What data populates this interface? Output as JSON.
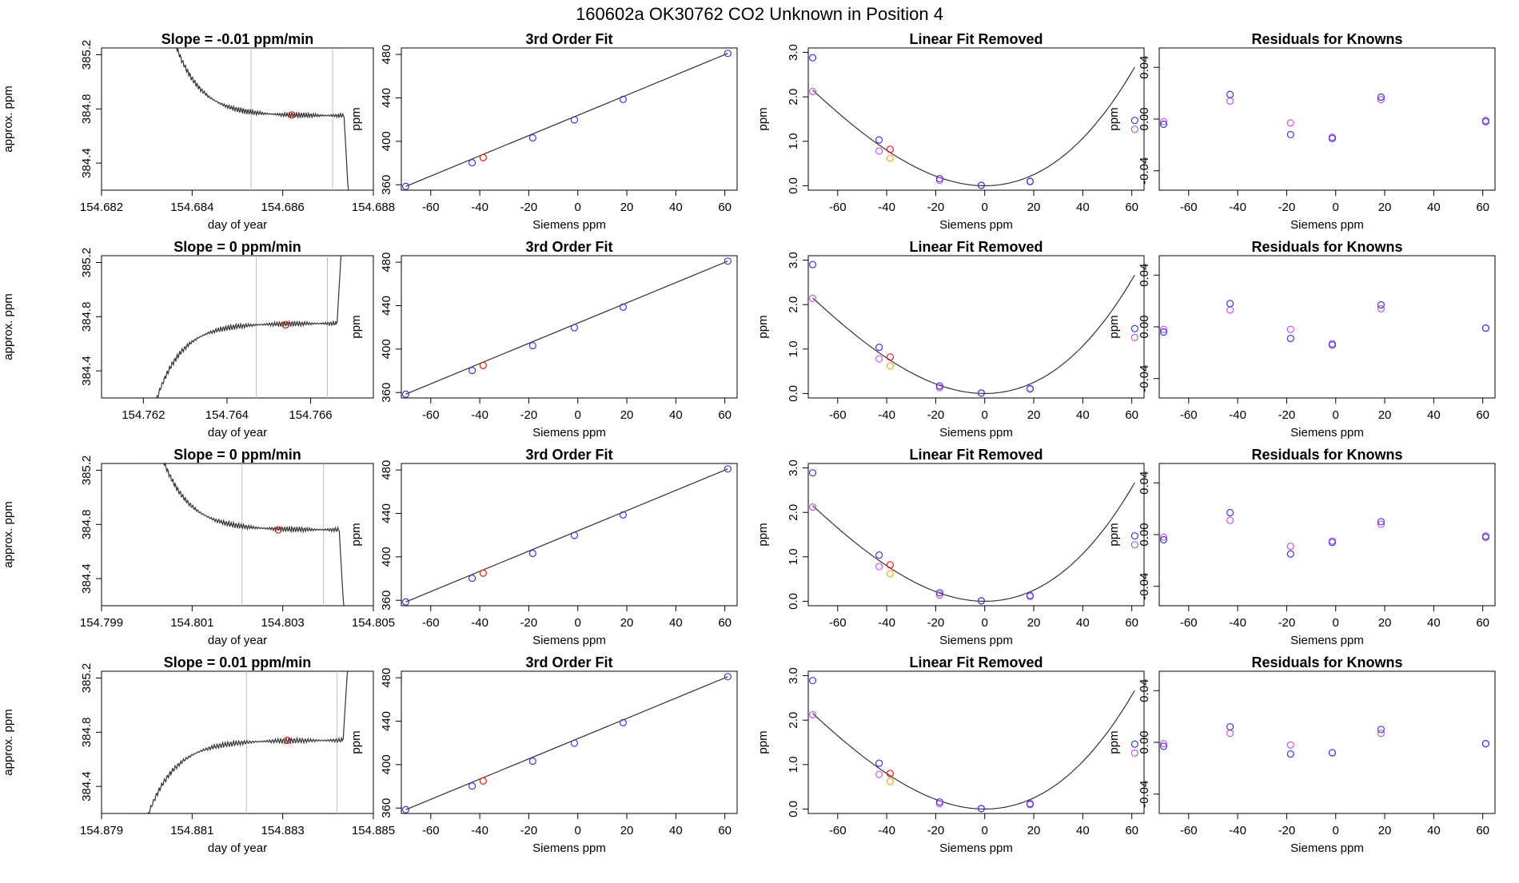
{
  "page_title": "160602a     OK30762   CO2 Unknown in Position  4",
  "chart_data": {
    "type": "scatter",
    "title": "160602a     OK30762   CO2 Unknown in Position  4",
    "layout": "4 rows x 4 columns",
    "rows": [
      {
        "time_series": {
          "title": "Slope =  -0.01  ppm/min",
          "xlabel": "day of year",
          "ylabel": "approx. ppm",
          "xlim": [
            154.682,
            154.688
          ],
          "ylim": [
            384.2,
            385.25
          ],
          "xticks": [
            "154.682",
            "154.684",
            "154.686",
            "154.688"
          ],
          "yticks": [
            "384.4",
            "384.8",
            "385.2"
          ],
          "shape": "decay",
          "start_x": 154.6833,
          "end_x": 154.6875,
          "plateau": 384.75,
          "vlines": [
            154.6853,
            154.6871
          ],
          "marker": {
            "x": 154.6862,
            "y": 384.755,
            "color": "#e41a1c"
          }
        },
        "cubic_fit": {
          "title": "3rd Order Fit",
          "xlabel": "Siemens ppm",
          "ylabel": "ppm",
          "xticks": [
            "-60",
            "-40",
            "-20",
            "0",
            "20",
            "40",
            "60"
          ],
          "yticks": [
            "360",
            "400",
            "440",
            "480"
          ],
          "knowns": [
            [
              -70.2,
              358.5
            ],
            [
              -43.1,
              380.3
            ],
            [
              -18.4,
              403.2
            ],
            [
              -1.4,
              419.8
            ],
            [
              18.5,
              438.6
            ],
            [
              61.2,
              481.0
            ]
          ],
          "unknown": [
            -38.6,
            385.0
          ]
        },
        "linear_removed": {
          "title": "Linear Fit Removed",
          "xlabel": "Siemens ppm",
          "ylabel": "ppm",
          "xticks": [
            "-60",
            "-40",
            "-20",
            "0",
            "20",
            "40",
            "60"
          ],
          "yticks": [
            "0.0",
            "1.0",
            "2.0",
            "3.0"
          ],
          "knowns_blue": [
            [
              -70.2,
              2.88
            ],
            [
              -43.1,
              1.03
            ],
            [
              -18.4,
              0.16
            ],
            [
              -1.4,
              0.01
            ],
            [
              18.5,
              0.1
            ],
            [
              61.2,
              1.47
            ]
          ],
          "knowns_magenta": [
            [
              -70.2,
              2.12
            ],
            [
              -43.1,
              0.78
            ],
            [
              -18.4,
              0.12
            ],
            [
              -1.4,
              0.01
            ],
            [
              18.5,
              0.09
            ],
            [
              61.2,
              1.27
            ]
          ],
          "unknown_red": [
            -38.6,
            0.82
          ],
          "unknown_orange": [
            -38.6,
            0.62
          ]
        },
        "residuals": {
          "title": "Residuals for Knowns",
          "xlabel": "Siemens ppm",
          "ylabel": "ppm",
          "xticks": [
            "-60",
            "-40",
            "-20",
            "0",
            "20",
            "40",
            "60"
          ],
          "yticks": [
            "-0.04",
            "0.00",
            "0.04"
          ],
          "blue": [
            [
              -70.2,
              -0.004
            ],
            [
              -43.1,
              0.019
            ],
            [
              -18.4,
              -0.012
            ],
            [
              -1.4,
              -0.015
            ],
            [
              18.5,
              0.017
            ],
            [
              61.2,
              -0.002
            ]
          ],
          "magenta": [
            [
              -70.2,
              -0.002
            ],
            [
              -43.1,
              0.014
            ],
            [
              -18.4,
              -0.003
            ],
            [
              -1.4,
              -0.014
            ],
            [
              18.5,
              0.015
            ],
            [
              61.2,
              -0.001
            ]
          ]
        }
      },
      {
        "time_series": {
          "title": "Slope =  0  ppm/min",
          "xlabel": "day of year",
          "ylabel": "approx. ppm",
          "xlim": [
            154.761,
            154.7675
          ],
          "ylim": [
            384.2,
            385.25
          ],
          "xticks": [
            "154.762",
            "154.764",
            "154.766"
          ],
          "yticks": [
            "384.4",
            "384.8",
            "385.2"
          ],
          "shape": "rise",
          "start_x": 154.762,
          "end_x": 154.7668,
          "plateau": 384.75,
          "vlines": [
            154.7647,
            154.7664
          ],
          "marker": {
            "x": 154.7654,
            "y": 384.74,
            "color": "#e41a1c"
          }
        },
        "cubic_fit": {
          "title": "3rd Order Fit",
          "xlabel": "Siemens ppm",
          "ylabel": "ppm",
          "xticks": [
            "-60",
            "-40",
            "-20",
            "0",
            "20",
            "40",
            "60"
          ],
          "yticks": [
            "360",
            "400",
            "440",
            "480"
          ],
          "knowns": [
            [
              -70.2,
              358.5
            ],
            [
              -43.1,
              380.3
            ],
            [
              -18.4,
              403.2
            ],
            [
              -1.4,
              419.8
            ],
            [
              18.5,
              438.6
            ],
            [
              61.2,
              481.0
            ]
          ],
          "unknown": [
            -38.6,
            385.0
          ]
        },
        "linear_removed": {
          "title": "Linear Fit Removed",
          "xlabel": "Siemens ppm",
          "ylabel": "ppm",
          "xticks": [
            "-60",
            "-40",
            "-20",
            "0",
            "20",
            "40",
            "60"
          ],
          "yticks": [
            "0.0",
            "1.0",
            "2.0",
            "3.0"
          ],
          "knowns_blue": [
            [
              -70.2,
              2.9
            ],
            [
              -43.1,
              1.04
            ],
            [
              -18.4,
              0.17
            ],
            [
              -1.4,
              0.01
            ],
            [
              18.5,
              0.11
            ],
            [
              61.2,
              1.46
            ]
          ],
          "knowns_magenta": [
            [
              -70.2,
              2.14
            ],
            [
              -43.1,
              0.78
            ],
            [
              -18.4,
              0.13
            ],
            [
              -1.4,
              0.01
            ],
            [
              18.5,
              0.1
            ],
            [
              61.2,
              1.26
            ]
          ],
          "unknown_red": [
            -38.6,
            0.82
          ],
          "unknown_orange": [
            -38.6,
            0.62
          ]
        },
        "residuals": {
          "title": "Residuals for Knowns",
          "xlabel": "Siemens ppm",
          "ylabel": "ppm",
          "xticks": [
            "-60",
            "-40",
            "-20",
            "0",
            "20",
            "40",
            "60"
          ],
          "yticks": [
            "-0.04",
            "0.00",
            "0.04"
          ],
          "blue": [
            [
              -70.2,
              -0.004
            ],
            [
              -43.1,
              0.018
            ],
            [
              -18.4,
              -0.009
            ],
            [
              -1.4,
              -0.014
            ],
            [
              18.5,
              0.017
            ],
            [
              61.2,
              -0.001
            ]
          ],
          "magenta": [
            [
              -70.2,
              -0.002
            ],
            [
              -43.1,
              0.013
            ],
            [
              -18.4,
              -0.002
            ],
            [
              -1.4,
              -0.013
            ],
            [
              18.5,
              0.014
            ],
            [
              61.2,
              -0.001
            ]
          ]
        }
      },
      {
        "time_series": {
          "title": "Slope =  0  ppm/min",
          "xlabel": "day of year",
          "ylabel": "approx. ppm",
          "xlim": [
            154.799,
            154.805
          ],
          "ylim": [
            384.2,
            385.25
          ],
          "xticks": [
            "154.799",
            "154.801",
            "154.803",
            "154.805"
          ],
          "yticks": [
            "384.4",
            "384.8",
            "385.2"
          ],
          "shape": "decay",
          "start_x": 154.8,
          "end_x": 154.8044,
          "plateau": 384.76,
          "vlines": [
            154.8021,
            154.8039
          ],
          "marker": {
            "x": 154.8029,
            "y": 384.76,
            "color": "#e41a1c"
          }
        },
        "cubic_fit": {
          "title": "3rd Order Fit",
          "xlabel": "Siemens ppm",
          "ylabel": "ppm",
          "xticks": [
            "-60",
            "-40",
            "-20",
            "0",
            "20",
            "40",
            "60"
          ],
          "yticks": [
            "360",
            "400",
            "440",
            "480"
          ],
          "knowns": [
            [
              -70.2,
              358.5
            ],
            [
              -43.1,
              380.3
            ],
            [
              -18.4,
              403.2
            ],
            [
              -1.4,
              419.8
            ],
            [
              18.5,
              438.6
            ],
            [
              61.2,
              481.0
            ]
          ],
          "unknown": [
            -38.6,
            385.0
          ]
        },
        "linear_removed": {
          "title": "Linear Fit Removed",
          "xlabel": "Siemens ppm",
          "ylabel": "ppm",
          "xticks": [
            "-60",
            "-40",
            "-20",
            "0",
            "20",
            "40",
            "60"
          ],
          "yticks": [
            "0.0",
            "1.0",
            "2.0",
            "3.0"
          ],
          "knowns_blue": [
            [
              -70.2,
              2.89
            ],
            [
              -43.1,
              1.04
            ],
            [
              -18.4,
              0.19
            ],
            [
              -1.4,
              0.01
            ],
            [
              18.5,
              0.13
            ],
            [
              61.2,
              1.47
            ]
          ],
          "knowns_magenta": [
            [
              -70.2,
              2.12
            ],
            [
              -43.1,
              0.78
            ],
            [
              -18.4,
              0.14
            ],
            [
              -1.4,
              0.01
            ],
            [
              18.5,
              0.11
            ],
            [
              61.2,
              1.27
            ]
          ],
          "unknown_red": [
            -38.6,
            0.82
          ],
          "unknown_orange": [
            -38.6,
            0.62
          ]
        },
        "residuals": {
          "title": "Residuals for Knowns",
          "xlabel": "Siemens ppm",
          "ylabel": "ppm",
          "xticks": [
            "-60",
            "-40",
            "-20",
            "0",
            "20",
            "40",
            "60"
          ],
          "yticks": [
            "-0.04",
            "0.00",
            "0.04"
          ],
          "blue": [
            [
              -70.2,
              -0.004
            ],
            [
              -43.1,
              0.017
            ],
            [
              -18.4,
              -0.015
            ],
            [
              -1.4,
              -0.006
            ],
            [
              18.5,
              0.01
            ],
            [
              61.2,
              -0.002
            ]
          ],
          "magenta": [
            [
              -70.2,
              -0.002
            ],
            [
              -43.1,
              0.011
            ],
            [
              -18.4,
              -0.009
            ],
            [
              -1.4,
              -0.005
            ],
            [
              18.5,
              0.008
            ],
            [
              61.2,
              -0.001
            ]
          ]
        }
      },
      {
        "time_series": {
          "title": "Slope =  0.01  ppm/min",
          "xlabel": "day of year",
          "ylabel": "approx. ppm",
          "xlim": [
            154.879,
            154.885
          ],
          "ylim": [
            384.2,
            385.25
          ],
          "xticks": [
            "154.879",
            "154.881",
            "154.883",
            "154.885"
          ],
          "yticks": [
            "384.4",
            "384.8",
            "385.2"
          ],
          "shape": "rise",
          "start_x": 154.8797,
          "end_x": 154.8845,
          "plateau": 384.74,
          "vlines": [
            154.8822,
            154.8842
          ],
          "marker": {
            "x": 154.8831,
            "y": 384.74,
            "color": "#e41a1c"
          }
        },
        "cubic_fit": {
          "title": "3rd Order Fit",
          "xlabel": "Siemens ppm",
          "ylabel": "ppm",
          "xticks": [
            "-60",
            "-40",
            "-20",
            "0",
            "20",
            "40",
            "60"
          ],
          "yticks": [
            "360",
            "400",
            "440",
            "480"
          ],
          "knowns": [
            [
              -70.2,
              358.5
            ],
            [
              -43.1,
              380.3
            ],
            [
              -18.4,
              403.2
            ],
            [
              -1.4,
              419.8
            ],
            [
              18.5,
              438.6
            ],
            [
              61.2,
              481.0
            ]
          ],
          "unknown": [
            -38.6,
            385.0
          ]
        },
        "linear_removed": {
          "title": "Linear Fit Removed",
          "xlabel": "Siemens ppm",
          "ylabel": "ppm",
          "xticks": [
            "-60",
            "-40",
            "-20",
            "0",
            "20",
            "40",
            "60"
          ],
          "yticks": [
            "0.0",
            "1.0",
            "2.0",
            "3.0"
          ],
          "knowns_blue": [
            [
              -70.2,
              2.89
            ],
            [
              -43.1,
              1.03
            ],
            [
              -18.4,
              0.16
            ],
            [
              -1.4,
              0.01
            ],
            [
              18.5,
              0.12
            ],
            [
              61.2,
              1.46
            ]
          ],
          "knowns_magenta": [
            [
              -70.2,
              2.12
            ],
            [
              -43.1,
              0.78
            ],
            [
              -18.4,
              0.12
            ],
            [
              -1.4,
              0.01
            ],
            [
              18.5,
              0.1
            ],
            [
              61.2,
              1.26
            ]
          ],
          "unknown_red": [
            -38.6,
            0.8
          ],
          "unknown_orange": [
            -38.6,
            0.62
          ]
        },
        "residuals": {
          "title": "Residuals for Knowns",
          "xlabel": "Siemens ppm",
          "ylabel": "ppm",
          "xticks": [
            "-60",
            "-40",
            "-20",
            "0",
            "20",
            "40",
            "60"
          ],
          "yticks": [
            "-0.04",
            "0.00",
            "0.04"
          ],
          "blue": [
            [
              -70.2,
              -0.003
            ],
            [
              -43.1,
              0.012
            ],
            [
              -18.4,
              -0.009
            ],
            [
              -1.4,
              -0.008
            ],
            [
              18.5,
              0.01
            ],
            [
              61.2,
              -0.001
            ]
          ],
          "magenta": [
            [
              -70.2,
              -0.001
            ],
            [
              -43.1,
              0.007
            ],
            [
              -18.4,
              -0.002
            ],
            [
              -1.4,
              -0.008
            ],
            [
              18.5,
              0.007
            ],
            [
              61.2,
              -0.001
            ]
          ]
        }
      }
    ],
    "styles": {
      "line_color": "#333333",
      "blue_point": "#3b3bd6",
      "magenta_point": "#cc55ee",
      "red_point": "#e41a1c",
      "orange_point": "#f5a623",
      "vline_color": "#bdbdbd"
    }
  }
}
